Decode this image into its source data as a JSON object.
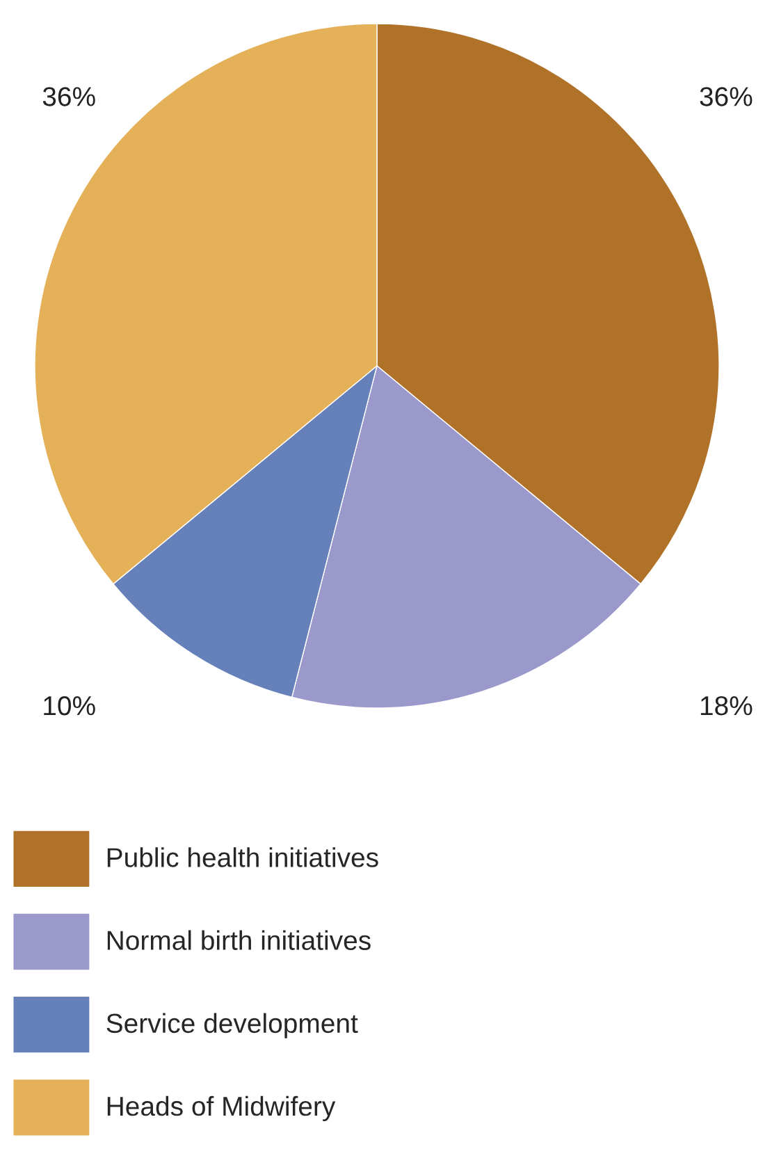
{
  "chart_data": {
    "type": "pie",
    "categories": [
      "Public health initiatives",
      "Normal birth initiatives",
      "Service development",
      "Heads of Midwifery"
    ],
    "values": [
      36,
      18,
      10,
      36
    ],
    "colors": [
      "#b07229",
      "#9b98cb",
      "#6680b9",
      "#e4b058"
    ],
    "value_labels": [
      "36%",
      "18%",
      "10%",
      "36%"
    ],
    "legend": "bottom"
  }
}
